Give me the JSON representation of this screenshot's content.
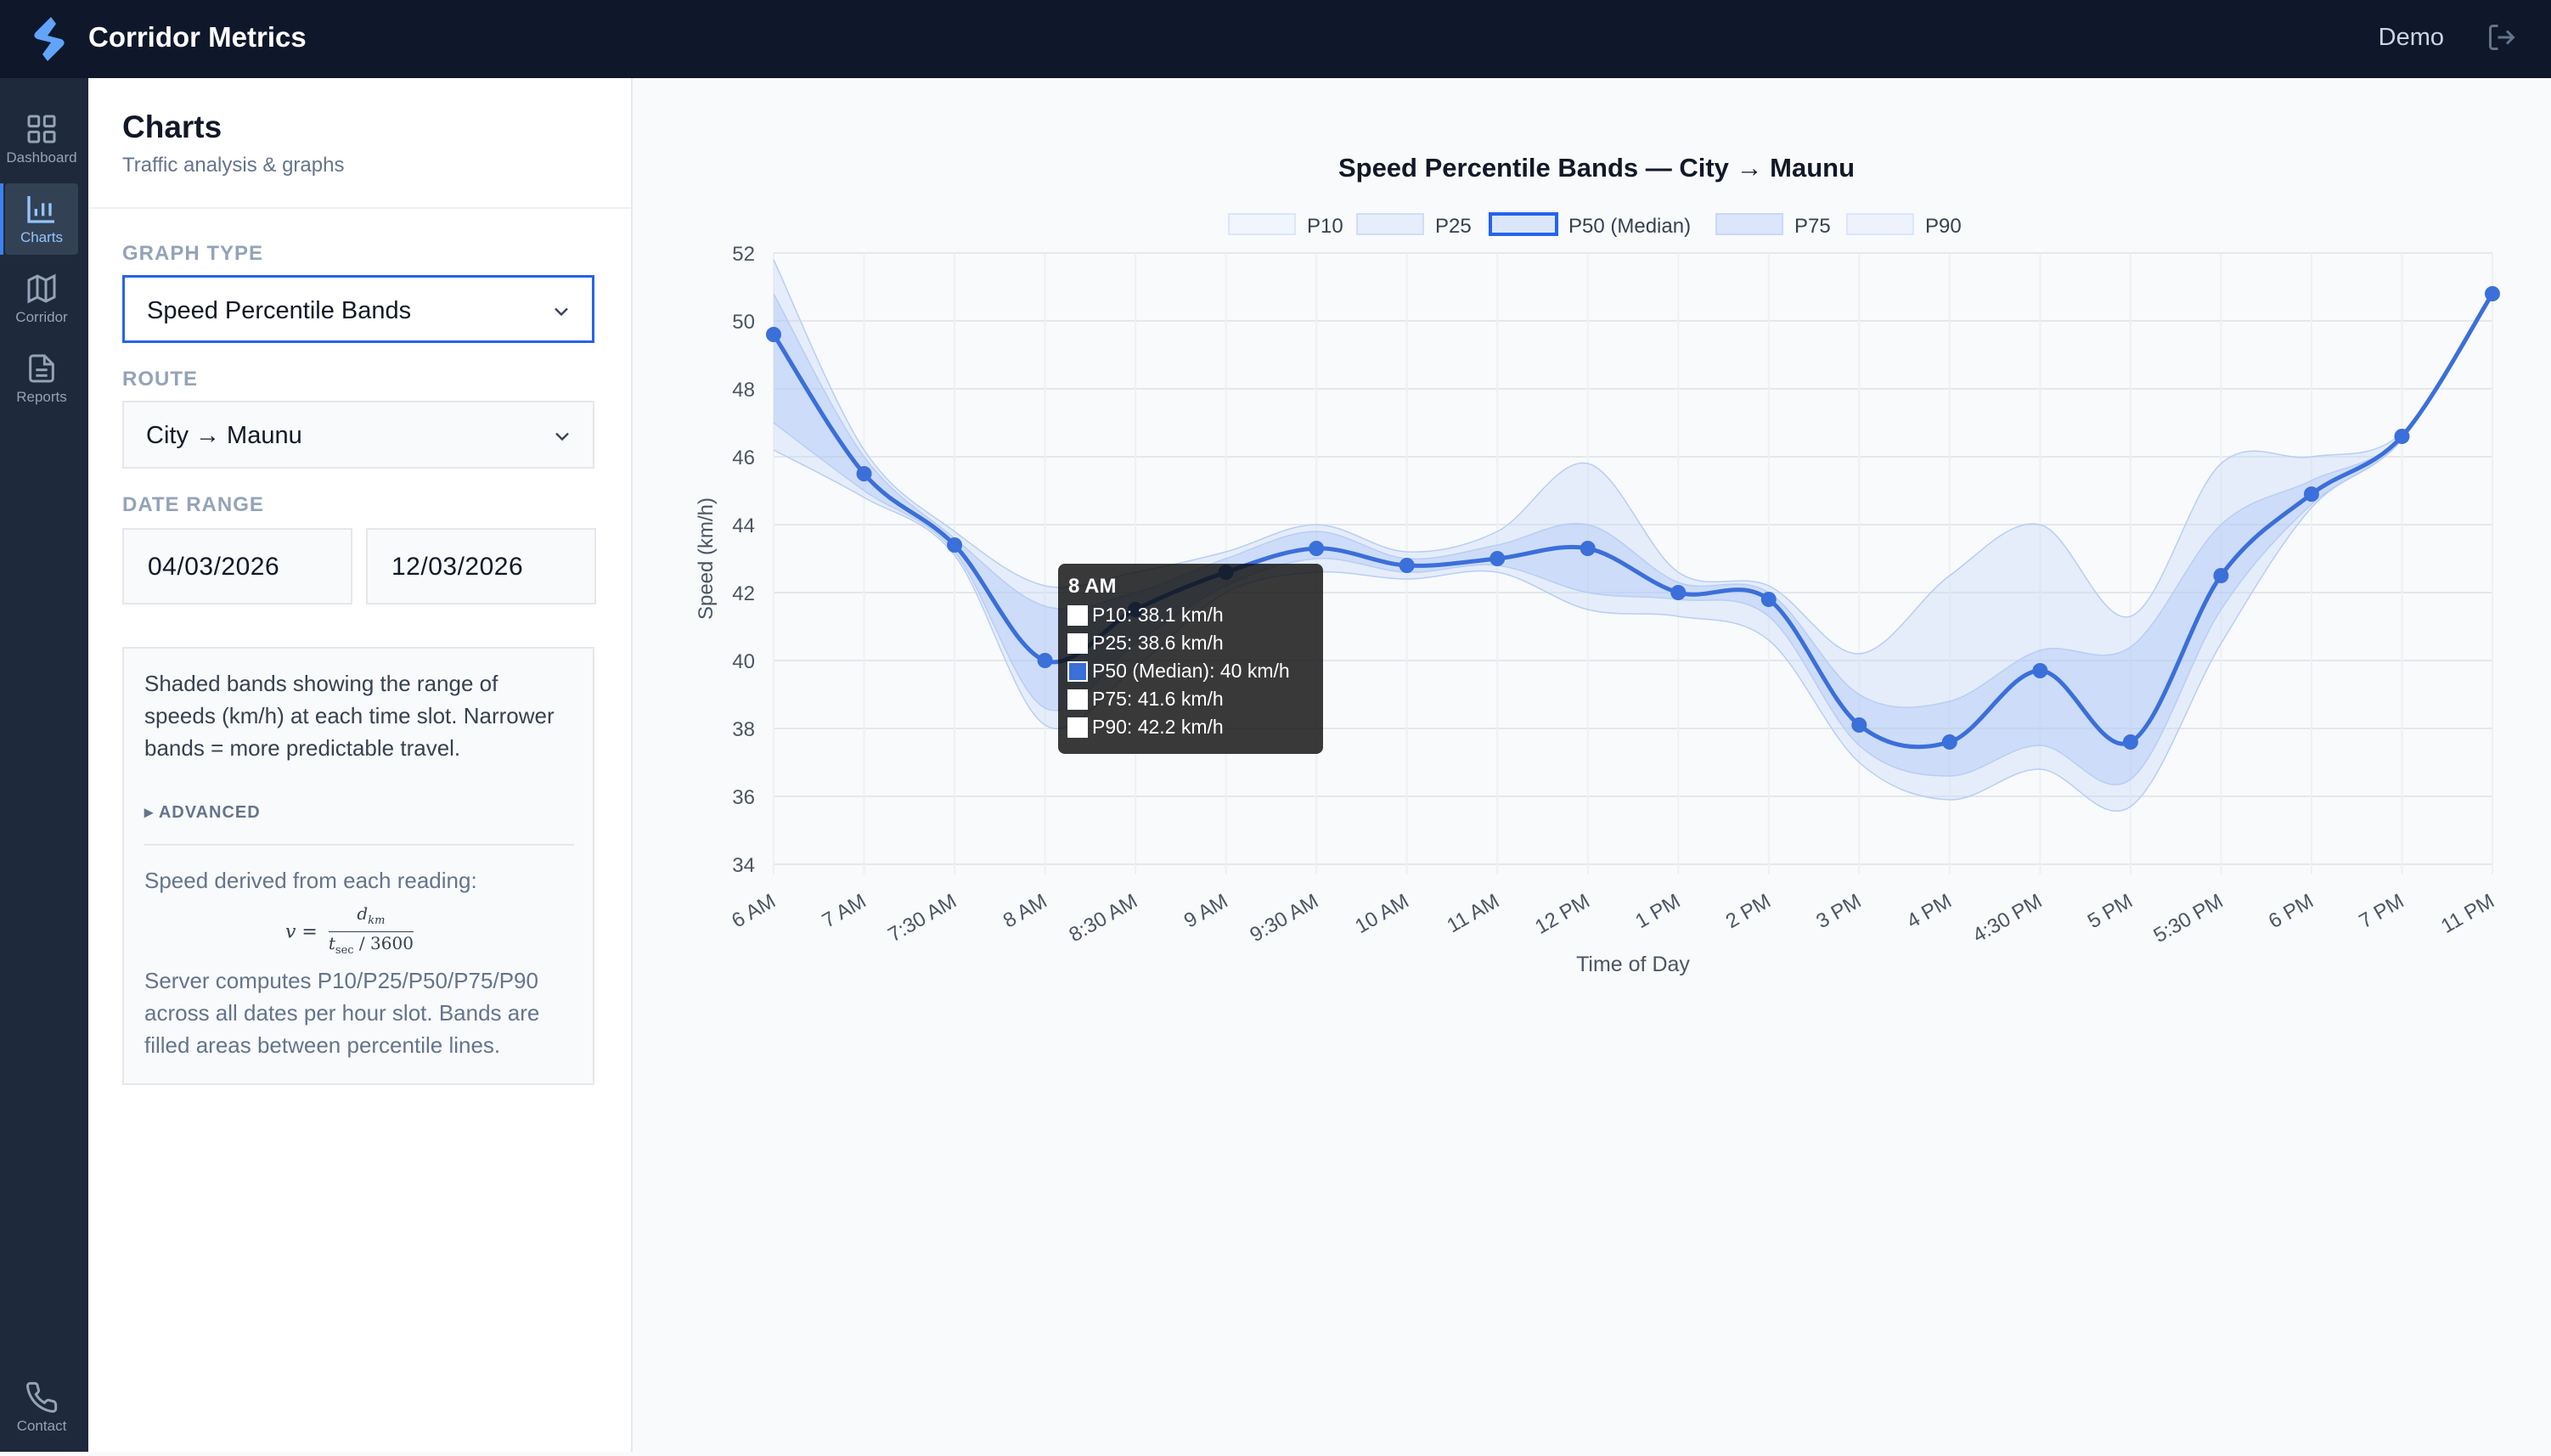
{
  "app": {
    "title": "Corridor Metrics",
    "user": "Demo"
  },
  "nav": {
    "items": [
      {
        "label": "Dashboard",
        "icon": "grid-icon"
      },
      {
        "label": "Charts",
        "icon": "bar-chart-icon",
        "active": true
      },
      {
        "label": "Corridor",
        "icon": "map-icon"
      },
      {
        "label": "Reports",
        "icon": "document-icon"
      },
      {
        "label": "Contact",
        "icon": "phone-icon"
      }
    ]
  },
  "panel": {
    "title": "Charts",
    "subtitle": "Traffic analysis & graphs",
    "graph_type_label": "GRAPH TYPE",
    "graph_type_value": "Speed Percentile Bands",
    "route_label": "ROUTE",
    "route_value": "City → Maunu",
    "date_range_label": "DATE RANGE",
    "date_from": "04/03/2026",
    "date_to": "12/03/2026",
    "info_text": "Shaded bands showing the range of speeds (km/h) at each time slot. Narrower bands = more predictable travel.",
    "advanced_label": "▸ ADVANCED",
    "formula_lead": "Speed derived from each reading:",
    "formula": {
      "lhs": "v =",
      "numerator": "d",
      "numerator_sub": "km",
      "denominator": "t",
      "denominator_sub": "sec",
      "denominator_tail": " / 3600"
    },
    "info_text2": "Server computes P10/P25/P50/P75/P90 across all dates per hour slot. Bands are filled areas between percentile lines."
  },
  "colors": {
    "accent": "#2563eb",
    "line": "#3b6fd9",
    "band_outer": "#dbe6fb",
    "band_inner": "#c9d8f7",
    "nav_bg": "#1e293b",
    "top_bg": "#0f172a"
  },
  "chart_data": {
    "type": "area",
    "title": "Speed Percentile Bands — City → Maunu",
    "xlabel": "Time of Day",
    "ylabel": "Speed (km/h)",
    "ylim": [
      34,
      52
    ],
    "yticks": [
      34,
      36,
      38,
      40,
      42,
      44,
      46,
      48,
      50,
      52
    ],
    "grid": true,
    "legend_position": "top",
    "categories": [
      "6 AM",
      "7 AM",
      "7:30 AM",
      "8 AM",
      "8:30 AM",
      "9 AM",
      "9:30 AM",
      "10 AM",
      "11 AM",
      "12 PM",
      "1 PM",
      "2 PM",
      "3 PM",
      "4 PM",
      "4:30 PM",
      "5 PM",
      "5:30 PM",
      "6 PM",
      "7 PM",
      "11 PM"
    ],
    "series": [
      {
        "name": "P10",
        "values": [
          46.2,
          44.8,
          43.1,
          38.1,
          39.8,
          42.0,
          42.6,
          42.4,
          42.6,
          41.5,
          41.3,
          40.6,
          37.0,
          35.9,
          36.8,
          35.7,
          40.5,
          44.5,
          46.5,
          50.8
        ]
      },
      {
        "name": "P25",
        "values": [
          47.0,
          45.0,
          43.2,
          38.6,
          40.5,
          42.2,
          43.0,
          42.6,
          42.8,
          42.0,
          41.8,
          41.3,
          37.5,
          36.6,
          37.5,
          36.5,
          41.5,
          44.6,
          46.5,
          50.8
        ]
      },
      {
        "name": "P50 (Median)",
        "values": [
          49.6,
          45.5,
          43.4,
          40.0,
          41.5,
          42.6,
          43.3,
          42.8,
          43.0,
          43.3,
          42.0,
          41.8,
          38.1,
          37.6,
          39.7,
          37.6,
          42.5,
          44.9,
          46.6,
          50.8
        ]
      },
      {
        "name": "P75",
        "values": [
          50.8,
          46.0,
          43.6,
          41.6,
          42.0,
          43.0,
          43.8,
          43.0,
          43.4,
          44.0,
          42.3,
          42.0,
          39.0,
          38.8,
          40.3,
          40.4,
          44.0,
          45.3,
          46.6,
          50.8
        ]
      },
      {
        "name": "P90",
        "values": [
          51.8,
          46.2,
          43.8,
          42.2,
          42.6,
          43.2,
          44.0,
          43.2,
          43.8,
          45.8,
          42.6,
          42.2,
          40.2,
          42.5,
          44.0,
          41.3,
          45.8,
          46.0,
          46.7,
          50.8
        ]
      }
    ],
    "tooltip": {
      "title": "8 AM",
      "lines": [
        "P10: 38.1 km/h",
        "P25: 38.6 km/h",
        "P50 (Median): 40 km/h",
        "P75: 41.6 km/h",
        "P90: 42.2 km/h"
      ]
    }
  }
}
